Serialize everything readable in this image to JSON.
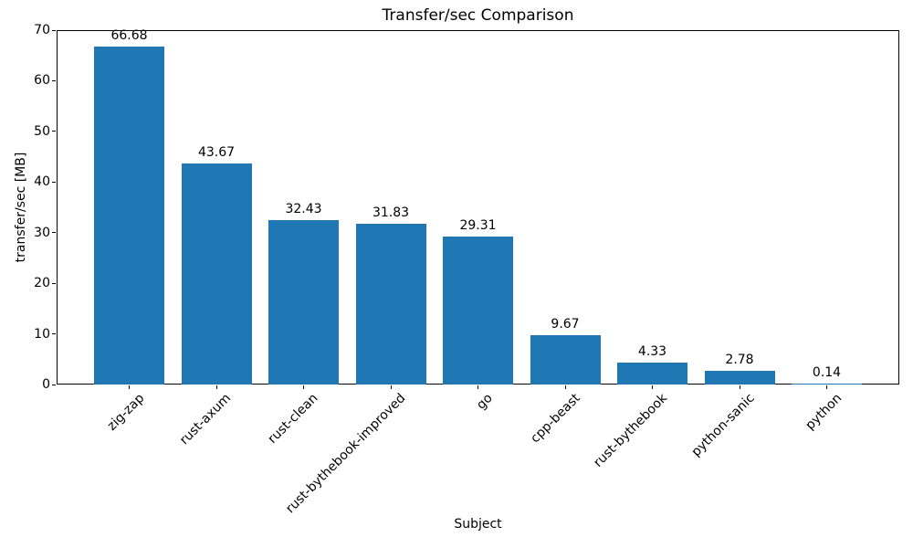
{
  "chart_data": {
    "type": "bar",
    "title": "Transfer/sec Comparison",
    "xlabel": "Subject",
    "ylabel": "transfer/sec [MB]",
    "categories": [
      "zig-zap",
      "rust-axum",
      "rust-clean",
      "rust-bythebook-improved",
      "go",
      "cpp-beast",
      "rust-bythebook",
      "python-sanic",
      "python"
    ],
    "values": [
      66.68,
      43.67,
      32.43,
      31.83,
      29.31,
      9.67,
      4.33,
      2.78,
      0.14
    ],
    "value_labels": [
      "66.68",
      "43.67",
      "32.43",
      "31.83",
      "29.31",
      "9.67",
      "4.33",
      "2.78",
      "0.14"
    ],
    "ylim": [
      0,
      70
    ],
    "yticks": [
      0,
      10,
      20,
      30,
      40,
      50,
      60,
      70
    ],
    "bar_color": "#1f77b4",
    "grid": false,
    "legend_position": "none"
  }
}
